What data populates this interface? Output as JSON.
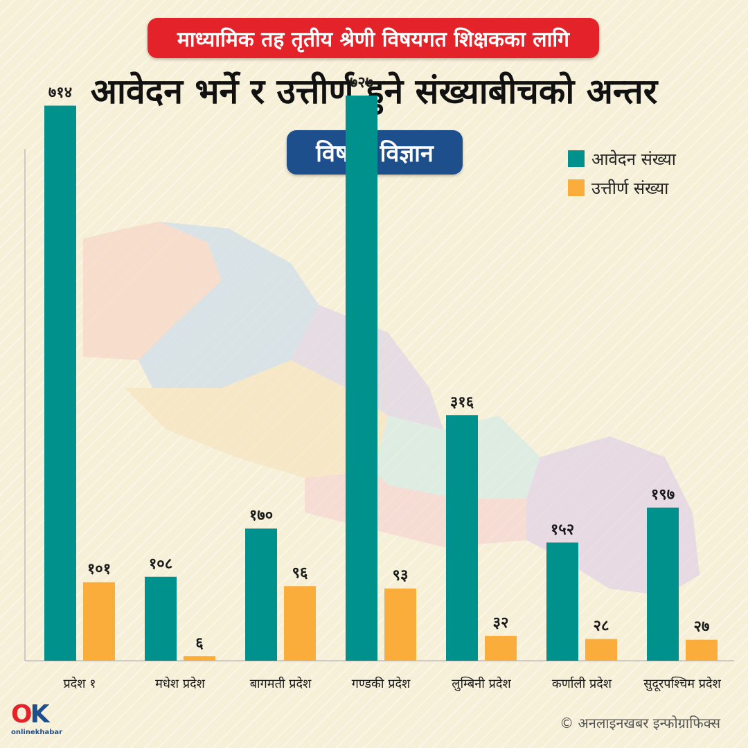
{
  "header": {
    "subtitle": "माध्यामिक तह तृतीय श्रेणी विषयगत शिक्षकका लागि",
    "title": "आवेदन भर्ने र उत्तीर्ण हुने संख्याबीचको अन्तर",
    "subject": "विषय: विज्ञान"
  },
  "legend": {
    "applied_label": "आवेदन  संख्या",
    "passed_label": "उत्तीर्ण  संख्या"
  },
  "colors": {
    "applied": "#00918d",
    "passed": "#fbad3b",
    "accent_red": "#e4222a",
    "accent_blue": "#1e4f8d"
  },
  "chart_data": {
    "type": "bar",
    "categories": [
      "प्रदेश  १",
      "मधेश प्रदेश",
      "बागमती प्रदेश",
      "गण्डकी प्रदेश",
      "लुम्बिनी प्रदेश",
      "कर्णाली प्रदेश",
      "सुदूरपश्चिम प्रदेश"
    ],
    "series": [
      {
        "name": "आवेदन  संख्या",
        "values": [
          714,
          108,
          170,
          727,
          316,
          152,
          197
        ],
        "labels": [
          "७१४",
          "१०८",
          "१७०",
          "७२७",
          "३१६",
          "१५२",
          "१९७"
        ]
      },
      {
        "name": "उत्तीर्ण  संख्या",
        "values": [
          101,
          6,
          96,
          93,
          32,
          28,
          27
        ],
        "labels": [
          "१०१",
          "६",
          "९६",
          "९३",
          "३२",
          "२८",
          "२७"
        ]
      }
    ],
    "ylim": [
      0,
      800
    ],
    "grid": false,
    "legend_position": "top-right"
  },
  "footer": {
    "logo_text": "onlinekhabar",
    "credit": "© अनलाइनखबर इन्फोग्राफिक्स"
  }
}
